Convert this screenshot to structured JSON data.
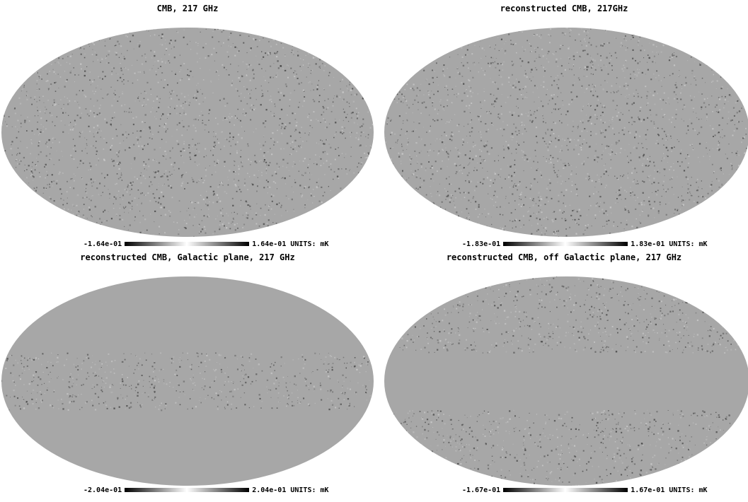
{
  "panels": [
    {
      "title": "CMB, 217 GHz",
      "mask": "none",
      "colorbar": {
        "min_label": "-1.64e-01",
        "max_label": "1.64e-01",
        "units_label": "UNITS: mK"
      }
    },
    {
      "title": "reconstructed CMB, 217GHz",
      "mask": "none",
      "colorbar": {
        "min_label": "-1.83e-01",
        "max_label": "1.83e-01",
        "units_label": "UNITS: mK"
      }
    },
    {
      "title": "reconstructed CMB, Galactic plane, 217 GHz",
      "mask": "off-plane-masked",
      "colorbar": {
        "min_label": "-2.04e-01",
        "max_label": "2.04e-01",
        "units_label": "UNITS: mK"
      }
    },
    {
      "title": "reconstructed CMB, off Galactic plane, 217 GHz",
      "mask": "plane-masked",
      "colorbar": {
        "min_label": "-1.67e-01",
        "max_label": "1.67e-01",
        "units_label": "UNITS: mK"
      }
    }
  ],
  "colors": {
    "map_base": "#a7a7a7",
    "speckle_dark": "#3a3a3a",
    "speckle_light": "#d0d0d0"
  }
}
